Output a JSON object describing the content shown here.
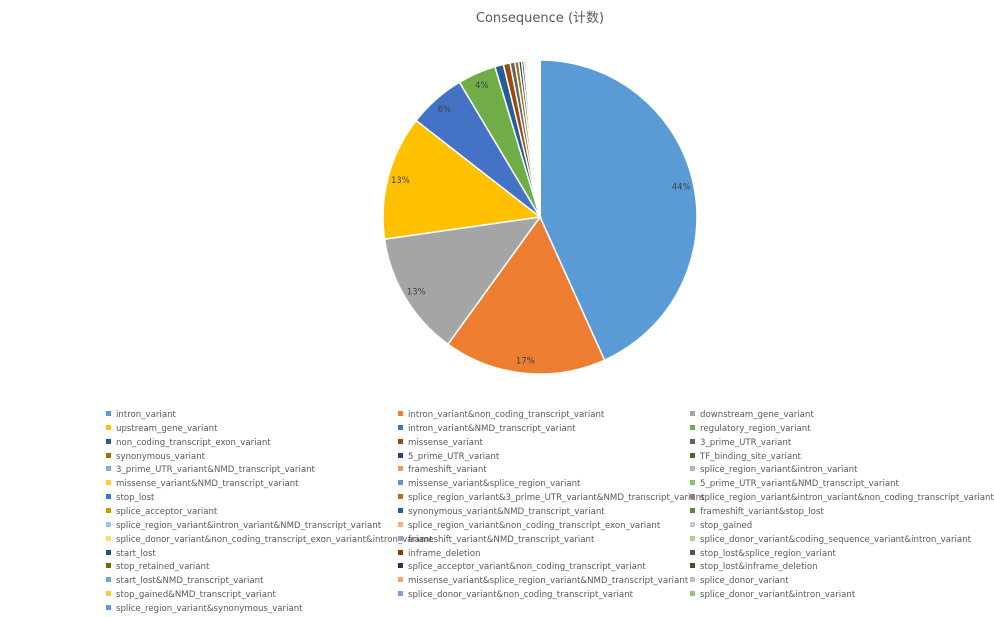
{
  "chart_data": {
    "type": "pie",
    "title": "Consequence (计数)",
    "legend_position": "bottom",
    "slices": [
      {
        "label": "intron_variant",
        "value": 44,
        "data_label": "44%",
        "color": "#5b9bd5"
      },
      {
        "label": "intron_variant&non_coding_transcript_variant",
        "value": 17,
        "data_label": "17%",
        "color": "#ed7d31"
      },
      {
        "label": "downstream_gene_variant",
        "value": 13,
        "data_label": "13%",
        "color": "#a5a5a5"
      },
      {
        "label": "upstream_gene_variant",
        "value": 13,
        "data_label": "13%",
        "color": "#ffc000"
      },
      {
        "label": "intron_variant&NMD_transcript_variant",
        "value": 6,
        "data_label": "6%",
        "color": "#4472c4"
      },
      {
        "label": "regulatory_region_variant",
        "value": 4,
        "data_label": "4%",
        "color": "#70ad47"
      },
      {
        "label": "non_coding_transcript_exon_variant",
        "value": 0.9,
        "data_label": "",
        "color": "#255e91"
      },
      {
        "label": "missense_variant",
        "value": 0.7,
        "data_label": "",
        "color": "#9e480e"
      },
      {
        "label": "3_prime_UTR_variant",
        "value": 0.5,
        "data_label": "",
        "color": "#636363"
      },
      {
        "label": "synonymous_variant",
        "value": 0.4,
        "data_label": "",
        "color": "#997300"
      },
      {
        "label": "5_prime_UTR_variant",
        "value": 0.3,
        "data_label": "",
        "color": "#264478"
      },
      {
        "label": "TF_binding_site_variant",
        "value": 0.25,
        "data_label": "",
        "color": "#43682b"
      },
      {
        "label": "3_prime_UTR_variant&NMD_transcript_variant",
        "value": 0.2,
        "data_label": "",
        "color": "#7cafdd"
      },
      {
        "label": "frameshift_variant",
        "value": 0.18,
        "data_label": "",
        "color": "#f1975a"
      },
      {
        "label": "splice_region_variant&intron_variant",
        "value": 0.16,
        "data_label": "",
        "color": "#b7b7b7"
      },
      {
        "label": "missense_variant&NMD_transcript_variant",
        "value": 0.14,
        "data_label": "",
        "color": "#ffcd33"
      },
      {
        "label": "missense_variant&splice_region_variant",
        "value": 0.12,
        "data_label": "",
        "color": "#698ed0"
      },
      {
        "label": "5_prime_UTR_variant&NMD_transcript_variant",
        "value": 0.1,
        "data_label": "",
        "color": "#8cc168"
      },
      {
        "label": "stop_lost",
        "value": 0.08,
        "data_label": "",
        "color": "#327dc2"
      },
      {
        "label": "splice_region_variant&3_prime_UTR_variant&NMD_transcript_variant",
        "value": 0.07,
        "data_label": "",
        "color": "#d26012"
      },
      {
        "label": "splice_region_variant&intron_variant&non_coding_transcript_variant",
        "value": 0.06,
        "data_label": "",
        "color": "#848484"
      },
      {
        "label": "splice_acceptor_variant",
        "value": 0.05,
        "data_label": "",
        "color": "#cc9a00"
      },
      {
        "label": "synonymous_variant&NMD_transcript_variant",
        "value": 0.05,
        "data_label": "",
        "color": "#335aa1"
      },
      {
        "label": "frameshift_variant&stop_lost",
        "value": 0.04,
        "data_label": "",
        "color": "#5a8a39"
      },
      {
        "label": "splice_region_variant&intron_variant&NMD_transcript_variant",
        "value": 0.04,
        "data_label": "",
        "color": "#9dc3e6"
      },
      {
        "label": "splice_region_variant&non_coding_transcript_exon_variant",
        "value": 0.035,
        "data_label": "",
        "color": "#f4b183"
      },
      {
        "label": "stop_gained",
        "value": 0.035,
        "data_label": "",
        "color": "#c9c9c9"
      },
      {
        "label": "splice_donor_variant&non_coding_transcript_exon_variant&intron_variant",
        "value": 0.03,
        "data_label": "",
        "color": "#ffd966"
      },
      {
        "label": "frameshift_variant&NMD_transcript_variant",
        "value": 0.03,
        "data_label": "",
        "color": "#8faadc"
      },
      {
        "label": "splice_donor_variant&coding_sequence_variant&intron_variant",
        "value": 0.03,
        "data_label": "",
        "color": "#a9d18e"
      },
      {
        "label": "start_lost",
        "value": 0.025,
        "data_label": "",
        "color": "#1f4e79"
      },
      {
        "label": "inframe_deletion",
        "value": 0.025,
        "data_label": "",
        "color": "#843c0c"
      },
      {
        "label": "stop_lost&splice_region_variant",
        "value": 0.02,
        "data_label": "",
        "color": "#525252"
      },
      {
        "label": "stop_retained_variant",
        "value": 0.02,
        "data_label": "",
        "color": "#7f6000"
      },
      {
        "label": "splice_acceptor_variant&non_coding_transcript_variant",
        "value": 0.02,
        "data_label": "",
        "color": "#203864"
      },
      {
        "label": "stop_lost&inframe_deletion",
        "value": 0.02,
        "data_label": "",
        "color": "#385723"
      },
      {
        "label": "start_lost&NMD_transcript_variant",
        "value": 0.015,
        "data_label": "",
        "color": "#6fa8dc"
      },
      {
        "label": "missense_variant&splice_region_variant&NMD_transcript_variant",
        "value": 0.015,
        "data_label": "",
        "color": "#f8a374"
      },
      {
        "label": "splice_donor_variant",
        "value": 0.015,
        "data_label": "",
        "color": "#bfbfbf"
      },
      {
        "label": "stop_gained&NMD_transcript_variant",
        "value": 0.01,
        "data_label": "",
        "color": "#ffc83d"
      },
      {
        "label": "splice_donor_variant&non_coding_transcript_variant",
        "value": 0.01,
        "data_label": "",
        "color": "#7e9fd9"
      },
      {
        "label": "splice_donor_variant&intron_variant",
        "value": 0.01,
        "data_label": "",
        "color": "#93c47d"
      },
      {
        "label": "splice_region_variant&synonymous_variant",
        "value": 0.01,
        "data_label": "",
        "color": "#5b9bd5"
      }
    ]
  }
}
